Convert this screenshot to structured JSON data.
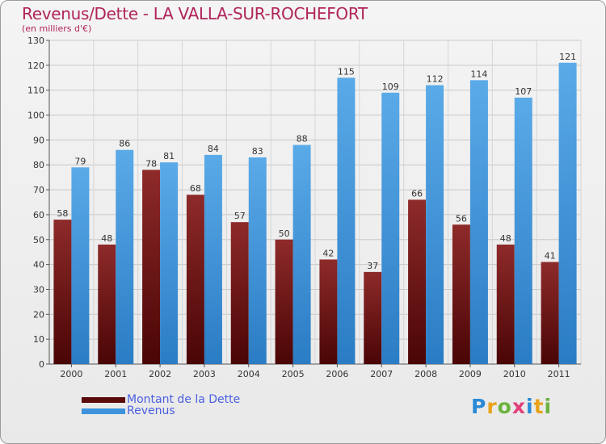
{
  "title": "Revenus/Dette - LA VALLA-SUR-ROCHEFORT",
  "subtitle": "(en milliers d'€)",
  "colors": {
    "dette": "#7a1a1a",
    "revenus": "#3d94dc",
    "title": "#b0245a",
    "legend_text": "#4a5fe0"
  },
  "legend": [
    {
      "label": "Montant de la Dette",
      "color": "#6b1010"
    },
    {
      "label": "Revenus",
      "color": "#3d94dc"
    }
  ],
  "logo_text": "Proxiti",
  "chart_data": {
    "type": "bar",
    "categories": [
      "2000",
      "2001",
      "2002",
      "2003",
      "2004",
      "2005",
      "2006",
      "2007",
      "2008",
      "2009",
      "2010",
      "2011"
    ],
    "series": [
      {
        "name": "Montant de la Dette",
        "values": [
          58,
          48,
          78,
          68,
          57,
          50,
          42,
          37,
          66,
          56,
          48,
          41
        ]
      },
      {
        "name": "Revenus",
        "values": [
          79,
          86,
          81,
          84,
          83,
          88,
          115,
          109,
          112,
          114,
          107,
          121
        ]
      }
    ],
    "ylim": [
      0,
      130
    ],
    "yticks": [
      0,
      10,
      20,
      30,
      40,
      50,
      60,
      70,
      80,
      90,
      100,
      110,
      120,
      130
    ],
    "grid": true,
    "legend_position": "bottom-left"
  }
}
